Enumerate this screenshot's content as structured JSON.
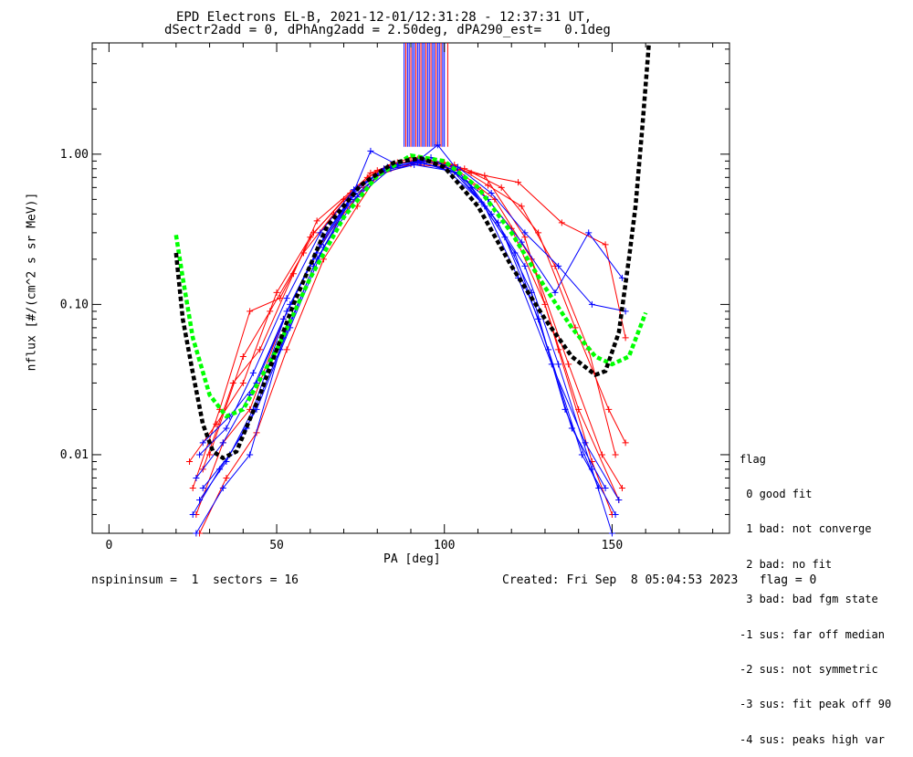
{
  "title_line1": "EPD Electrons EL-B, 2021-12-01/12:31:28 - 12:37:31 UT,",
  "title_line2": "dSectr2add = 0, dPhAng2add = 2.50deg, dPA290_est=   0.1deg",
  "footer": {
    "left": "nspininsum =  1  sectors = 16",
    "right": "Created: Fri Sep  8 05:04:53 2023   flag = 0"
  },
  "legend": {
    "title": "flag",
    "items": [
      " 0 good fit",
      " 1 bad: not converge",
      " 2 bad: no fit",
      " 3 bad: bad fgm state",
      "-1 sus: far off median",
      "-2 sus: not symmetric",
      "-3 sus: fit peak off 90",
      "-4 sus: peaks high var"
    ]
  },
  "colors": {
    "red": "#ff0000",
    "blue": "#0000ff",
    "green": "#00ff00",
    "black": "#000000",
    "bars": "#0000ff"
  },
  "chart_data": {
    "type": "line",
    "xlabel": "PA [deg]",
    "ylabel": "nflux [#/(cm^2 s sr MeV)]",
    "xlim": [
      -5,
      185
    ],
    "ylim": [
      0.003,
      5.5
    ],
    "yscale": "log",
    "xticks": [
      0,
      50,
      100,
      150
    ],
    "yticks": [
      {
        "v": 0.01,
        "label": "0.01"
      },
      {
        "v": 0.1,
        "label": "0.10"
      },
      {
        "v": 1.0,
        "label": "1.00"
      }
    ],
    "grid": false,
    "series": [
      {
        "color": "red",
        "points": [
          [
            26,
            0.004
          ],
          [
            34,
            0.012
          ],
          [
            42,
            0.02
          ],
          [
            52,
            0.08
          ],
          [
            63,
            0.25
          ],
          [
            76,
            0.6
          ],
          [
            83,
            0.8
          ],
          [
            94,
            0.9
          ],
          [
            104,
            0.78
          ],
          [
            115,
            0.5
          ],
          [
            126,
            0.2
          ],
          [
            137,
            0.04
          ],
          [
            147,
            0.01
          ],
          [
            153,
            0.006
          ]
        ]
      },
      {
        "color": "red",
        "points": [
          [
            28,
            0.008
          ],
          [
            37,
            0.03
          ],
          [
            45,
            0.05
          ],
          [
            55,
            0.16
          ],
          [
            62,
            0.36
          ],
          [
            77,
            0.7
          ],
          [
            84,
            0.85
          ],
          [
            95,
            0.92
          ],
          [
            106,
            0.8
          ],
          [
            117,
            0.6
          ],
          [
            128,
            0.3
          ],
          [
            139,
            0.07
          ],
          [
            149,
            0.02
          ],
          [
            154,
            0.012
          ]
        ]
      },
      {
        "color": "red",
        "points": [
          [
            30,
            0.01
          ],
          [
            40,
            0.045
          ],
          [
            48,
            0.09
          ],
          [
            58,
            0.22
          ],
          [
            67,
            0.4
          ],
          [
            78,
            0.75
          ],
          [
            86,
            0.88
          ],
          [
            96,
            0.9
          ],
          [
            108,
            0.75
          ],
          [
            122,
            0.65
          ],
          [
            135,
            0.35
          ],
          [
            148,
            0.25
          ],
          [
            154,
            0.06
          ]
        ]
      },
      {
        "color": "red",
        "points": [
          [
            25,
            0.006
          ],
          [
            33,
            0.02
          ],
          [
            42,
            0.09
          ],
          [
            51,
            0.11
          ],
          [
            61,
            0.3
          ],
          [
            72,
            0.55
          ],
          [
            82,
            0.8
          ],
          [
            92,
            0.93
          ],
          [
            103,
            0.85
          ],
          [
            113,
            0.62
          ],
          [
            123,
            0.45
          ],
          [
            133,
            0.18
          ],
          [
            143,
            0.05
          ],
          [
            151,
            0.01
          ]
        ]
      },
      {
        "color": "red",
        "points": [
          [
            27,
            0.003
          ],
          [
            35,
            0.007
          ],
          [
            44,
            0.014
          ],
          [
            53,
            0.05
          ],
          [
            64,
            0.2
          ],
          [
            74,
            0.45
          ],
          [
            80,
            0.72
          ],
          [
            90,
            0.86
          ],
          [
            100,
            0.82
          ],
          [
            110,
            0.6
          ],
          [
            120,
            0.32
          ],
          [
            130,
            0.1
          ],
          [
            140,
            0.02
          ],
          [
            152,
            0.005
          ]
        ]
      },
      {
        "color": "red",
        "points": [
          [
            24,
            0.009
          ],
          [
            32,
            0.016
          ],
          [
            40,
            0.03
          ],
          [
            50,
            0.12
          ],
          [
            60,
            0.28
          ],
          [
            70,
            0.5
          ],
          [
            80,
            0.78
          ],
          [
            90,
            0.95
          ],
          [
            100,
            0.88
          ],
          [
            112,
            0.72
          ],
          [
            124,
            0.28
          ],
          [
            134,
            0.05
          ],
          [
            144,
            0.009
          ],
          [
            150,
            0.004
          ]
        ]
      },
      {
        "color": "blue",
        "points": [
          [
            26,
            0.003
          ],
          [
            34,
            0.006
          ],
          [
            42,
            0.01
          ],
          [
            52,
            0.06
          ],
          [
            62,
            0.2
          ],
          [
            72,
            0.5
          ],
          [
            78,
            1.05
          ],
          [
            86,
            0.85
          ],
          [
            96,
            0.95
          ],
          [
            106,
            0.7
          ],
          [
            116,
            0.35
          ],
          [
            126,
            0.12
          ],
          [
            136,
            0.02
          ],
          [
            146,
            0.006
          ]
        ]
      },
      {
        "color": "blue",
        "points": [
          [
            27,
            0.005
          ],
          [
            35,
            0.009
          ],
          [
            43,
            0.02
          ],
          [
            53,
            0.09
          ],
          [
            63,
            0.25
          ],
          [
            73,
            0.55
          ],
          [
            82,
            0.8
          ],
          [
            92,
            0.88
          ],
          [
            102,
            0.8
          ],
          [
            112,
            0.45
          ],
          [
            122,
            0.15
          ],
          [
            132,
            0.04
          ],
          [
            142,
            0.012
          ],
          [
            152,
            0.005
          ]
        ]
      },
      {
        "color": "blue",
        "points": [
          [
            28,
            0.012
          ],
          [
            36,
            0.018
          ],
          [
            44,
            0.03
          ],
          [
            54,
            0.1
          ],
          [
            64,
            0.28
          ],
          [
            74,
            0.6
          ],
          [
            84,
            0.82
          ],
          [
            94,
            0.9
          ],
          [
            104,
            0.82
          ],
          [
            114,
            0.55
          ],
          [
            124,
            0.3
          ],
          [
            134,
            0.18
          ],
          [
            144,
            0.1
          ],
          [
            154,
            0.09
          ]
        ]
      },
      {
        "color": "blue",
        "points": [
          [
            25,
            0.004
          ],
          [
            33,
            0.008
          ],
          [
            41,
            0.015
          ],
          [
            51,
            0.05
          ],
          [
            61,
            0.18
          ],
          [
            71,
            0.45
          ],
          [
            81,
            0.75
          ],
          [
            91,
            0.85
          ],
          [
            101,
            0.78
          ],
          [
            111,
            0.48
          ],
          [
            121,
            0.22
          ],
          [
            131,
            0.05
          ],
          [
            141,
            0.01
          ],
          [
            151,
            0.004
          ]
        ]
      },
      {
        "color": "blue",
        "points": [
          [
            26,
            0.007
          ],
          [
            34,
            0.012
          ],
          [
            42,
            0.025
          ],
          [
            52,
            0.08
          ],
          [
            62,
            0.22
          ],
          [
            72,
            0.5
          ],
          [
            82,
            0.78
          ],
          [
            92,
            0.9
          ],
          [
            98,
            1.15
          ],
          [
            108,
            0.6
          ],
          [
            118,
            0.28
          ],
          [
            128,
            0.08
          ],
          [
            138,
            0.015
          ],
          [
            148,
            0.006
          ]
        ]
      },
      {
        "color": "blue",
        "points": [
          [
            27,
            0.01
          ],
          [
            35,
            0.015
          ],
          [
            43,
            0.035
          ],
          [
            53,
            0.11
          ],
          [
            63,
            0.3
          ],
          [
            73,
            0.58
          ],
          [
            83,
            0.82
          ],
          [
            93,
            0.88
          ],
          [
            103,
            0.76
          ],
          [
            113,
            0.5
          ],
          [
            123,
            0.26
          ],
          [
            133,
            0.12
          ],
          [
            143,
            0.3
          ],
          [
            153,
            0.15
          ]
        ]
      },
      {
        "color": "blue",
        "points": [
          [
            28,
            0.006
          ],
          [
            36,
            0.01
          ],
          [
            44,
            0.02
          ],
          [
            54,
            0.07
          ],
          [
            64,
            0.24
          ],
          [
            74,
            0.52
          ],
          [
            84,
            0.8
          ],
          [
            94,
            0.87
          ],
          [
            104,
            0.74
          ],
          [
            114,
            0.4
          ],
          [
            124,
            0.18
          ],
          [
            134,
            0.04
          ],
          [
            144,
            0.008
          ],
          [
            150,
            0.003
          ]
        ]
      }
    ],
    "fit_curves": [
      {
        "color": "green",
        "points": [
          [
            20,
            0.29
          ],
          [
            22,
            0.15
          ],
          [
            25,
            0.06
          ],
          [
            30,
            0.025
          ],
          [
            35,
            0.018
          ],
          [
            40,
            0.02
          ],
          [
            50,
            0.05
          ],
          [
            60,
            0.15
          ],
          [
            70,
            0.38
          ],
          [
            80,
            0.72
          ],
          [
            90,
            0.98
          ],
          [
            100,
            0.9
          ],
          [
            110,
            0.6
          ],
          [
            120,
            0.3
          ],
          [
            130,
            0.13
          ],
          [
            138,
            0.07
          ],
          [
            145,
            0.045
          ],
          [
            150,
            0.04
          ],
          [
            155,
            0.045
          ],
          [
            160,
            0.088
          ]
        ]
      },
      {
        "color": "black",
        "points": [
          [
            20,
            0.22
          ],
          [
            22,
            0.08
          ],
          [
            25,
            0.035
          ],
          [
            28,
            0.016
          ],
          [
            31,
            0.0105
          ],
          [
            34,
            0.0095
          ],
          [
            38,
            0.0105
          ],
          [
            45,
            0.025
          ],
          [
            55,
            0.1
          ],
          [
            65,
            0.33
          ],
          [
            75,
            0.62
          ],
          [
            85,
            0.88
          ],
          [
            93,
            0.94
          ],
          [
            100,
            0.82
          ],
          [
            110,
            0.45
          ],
          [
            120,
            0.18
          ],
          [
            130,
            0.08
          ],
          [
            138,
            0.045
          ],
          [
            145,
            0.034
          ],
          [
            148,
            0.036
          ],
          [
            152,
            0.065
          ],
          [
            155,
            0.2
          ],
          [
            157,
            0.45
          ],
          [
            159,
            1.5
          ],
          [
            161,
            5.5
          ]
        ]
      }
    ],
    "bars_x_range": [
      88,
      100
    ],
    "bars_y_range": [
      1.12,
      5.5
    ]
  }
}
